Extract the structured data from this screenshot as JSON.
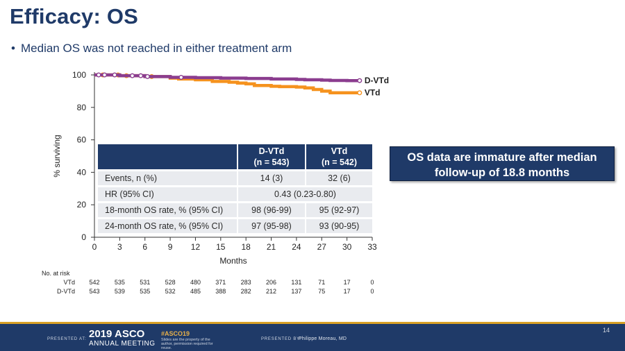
{
  "slide": {
    "title": "Efficacy: OS",
    "bullet": "Median OS was not reached in either treatment arm",
    "callout": "OS data are immature after median follow-up of 18.8 months",
    "slide_number": "14"
  },
  "chart_data": {
    "type": "line",
    "xlabel": "Months",
    "ylabel": "% surviving",
    "xlim": [
      0,
      33
    ],
    "ylim": [
      0,
      100
    ],
    "xticks": [
      0,
      3,
      6,
      9,
      12,
      15,
      18,
      21,
      24,
      27,
      30,
      33
    ],
    "yticks": [
      0,
      20,
      40,
      60,
      80,
      100
    ],
    "grid": false,
    "series": [
      {
        "name": "D-VTd",
        "color": "#8b3d8f",
        "x": [
          0,
          3,
          6,
          9,
          12,
          15,
          18,
          21,
          24,
          25,
          27,
          28,
          30,
          31.5
        ],
        "y": [
          100,
          99.5,
          99,
          98.5,
          98.3,
          98,
          97.8,
          97.5,
          97.2,
          97,
          96.8,
          96.6,
          96.5,
          96.5
        ]
      },
      {
        "name": "VTd",
        "color": "#f5921e",
        "x": [
          0,
          3,
          6,
          9,
          10,
          12,
          14,
          16,
          17,
          18,
          19,
          21,
          22,
          24,
          25,
          26,
          27,
          28,
          30,
          31.5
        ],
        "y": [
          100,
          99.5,
          99,
          98,
          97.5,
          97,
          96,
          95.5,
          95,
          94.5,
          93.5,
          93,
          92.8,
          92.5,
          92,
          91,
          90,
          89,
          89,
          89
        ]
      }
    ],
    "censor_marks": {
      "D-VTd": [
        0.5,
        1.2,
        2.4,
        4.5,
        5.5,
        6.3,
        10.3
      ],
      "VTd": [
        1.0,
        2.8,
        3.8,
        6.8
      ]
    },
    "end_labels": [
      "D-VTd",
      "VTd"
    ]
  },
  "table": {
    "col_header_1": "D-VTd\n(n = 543)",
    "col_header_1a": "D-VTd",
    "col_header_1b": "(n = 543)",
    "col_header_2a": "VTd",
    "col_header_2b": "(n = 542)",
    "rows": [
      {
        "label": "Events, n (%)",
        "dvtd": "14 (3)",
        "vtd": "32 (6)"
      },
      {
        "label": "HR (95% CI)",
        "merged": "0.43 (0.23-0.80)"
      },
      {
        "label": "18-month OS rate, % (95% CI)",
        "dvtd": "98 (96-99)",
        "vtd": "95 (92-97)"
      },
      {
        "label": "24-month OS rate, % (95% CI)",
        "dvtd": "97 (95-98)",
        "vtd": "93 (90-95)"
      }
    ]
  },
  "risk": {
    "header": "No. at risk",
    "rows": [
      {
        "arm": "VTd",
        "values": [
          "542",
          "535",
          "531",
          "528",
          "480",
          "371",
          "283",
          "206",
          "131",
          "71",
          "17",
          "0"
        ]
      },
      {
        "arm": "D-VTd",
        "values": [
          "543",
          "539",
          "535",
          "532",
          "485",
          "388",
          "282",
          "212",
          "137",
          "75",
          "17",
          "0"
        ]
      }
    ]
  },
  "footer": {
    "presented_at": "PRESENTED AT:",
    "asco_year": "2019 ASCO",
    "asco_meeting": "ANNUAL MEETING",
    "hashtag": "#ASCO19",
    "asco_note": "Slides are the property of the author, permission required for reuse.",
    "presented_by": "PRESENTED BY:",
    "presenter": "Philippe Moreau, MD"
  }
}
